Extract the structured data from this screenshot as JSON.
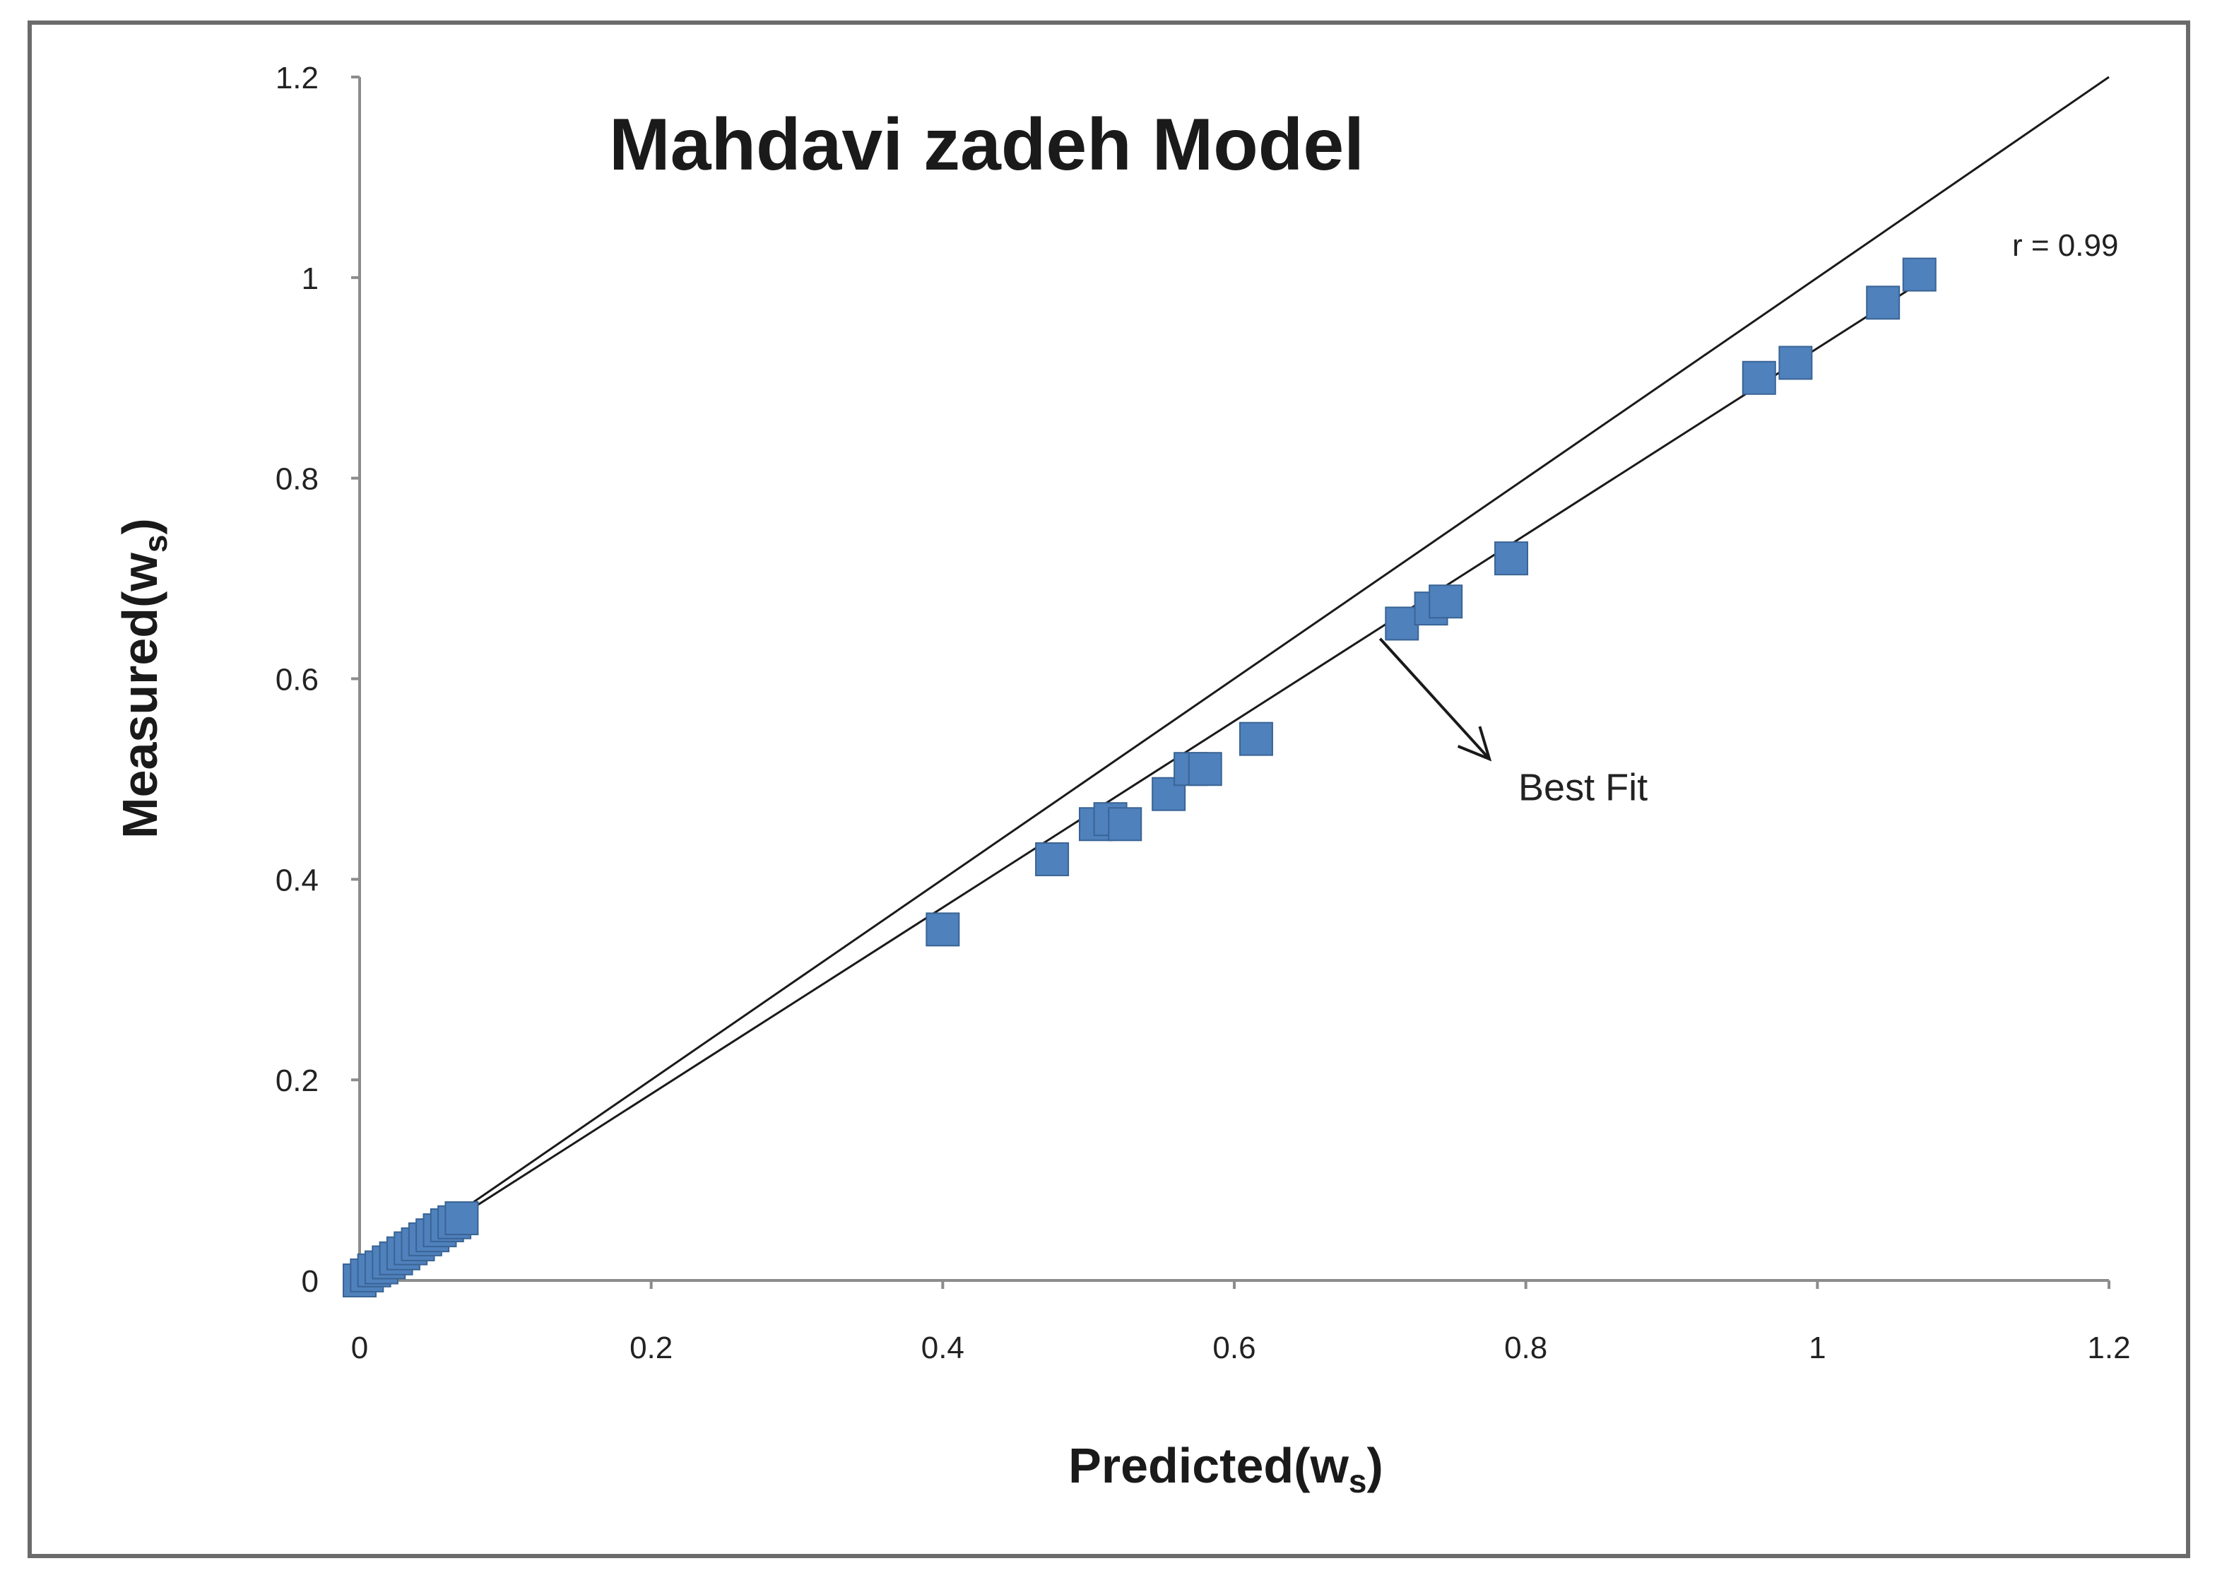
{
  "chart_data": {
    "type": "scatter",
    "title": "Mahdavi zadeh  Model",
    "xlabel": {
      "main": "Predicted(w",
      "sub": "s",
      "close": ")"
    },
    "ylabel": {
      "main": "Measured(w",
      "sub": "s",
      "close": ")"
    },
    "xlim": [
      0,
      1.2
    ],
    "ylim": [
      0,
      1.2
    ],
    "x_ticks": [
      "0",
      "0.2",
      "0.4",
      "0.6",
      "0.8",
      "1",
      "1.2"
    ],
    "y_ticks": [
      "0",
      "0.2",
      "0.4",
      "0.6",
      "0.8",
      "1",
      "1.2"
    ],
    "grid": false,
    "series": [
      {
        "color": "#4f81bd",
        "marker": "square",
        "points": [
          {
            "x": 0.0,
            "y": 0.0
          },
          {
            "x": 0.005,
            "y": 0.005
          },
          {
            "x": 0.01,
            "y": 0.01
          },
          {
            "x": 0.015,
            "y": 0.013
          },
          {
            "x": 0.02,
            "y": 0.018
          },
          {
            "x": 0.025,
            "y": 0.022
          },
          {
            "x": 0.03,
            "y": 0.027
          },
          {
            "x": 0.035,
            "y": 0.032
          },
          {
            "x": 0.04,
            "y": 0.036
          },
          {
            "x": 0.045,
            "y": 0.041
          },
          {
            "x": 0.05,
            "y": 0.045
          },
          {
            "x": 0.055,
            "y": 0.05
          },
          {
            "x": 0.06,
            "y": 0.055
          },
          {
            "x": 0.065,
            "y": 0.058
          },
          {
            "x": 0.07,
            "y": 0.062
          },
          {
            "x": 0.4,
            "y": 0.35
          },
          {
            "x": 0.475,
            "y": 0.42
          },
          {
            "x": 0.505,
            "y": 0.455
          },
          {
            "x": 0.515,
            "y": 0.46
          },
          {
            "x": 0.525,
            "y": 0.455
          },
          {
            "x": 0.555,
            "y": 0.485
          },
          {
            "x": 0.57,
            "y": 0.51
          },
          {
            "x": 0.58,
            "y": 0.51
          },
          {
            "x": 0.615,
            "y": 0.54
          },
          {
            "x": 0.715,
            "y": 0.655
          },
          {
            "x": 0.735,
            "y": 0.67
          },
          {
            "x": 0.745,
            "y": 0.677
          },
          {
            "x": 0.79,
            "y": 0.72
          },
          {
            "x": 0.96,
            "y": 0.9
          },
          {
            "x": 0.985,
            "y": 0.915
          },
          {
            "x": 1.045,
            "y": 0.975
          },
          {
            "x": 1.07,
            "y": 1.003
          }
        ]
      }
    ],
    "lines": [
      {
        "kind": "1:1 line",
        "from": [
          0,
          0
        ],
        "to": [
          1.2,
          1.2
        ]
      },
      {
        "kind": "best fit",
        "from": [
          0,
          0
        ],
        "to": [
          1.065,
          0.99
        ]
      }
    ],
    "annotations": {
      "r": "r = 0.99",
      "best_fit": "Best Fit",
      "best_fit_arrow_from": [
        0.7,
        0.64
      ],
      "best_fit_arrow_to": [
        0.775,
        0.52
      ],
      "best_fit_label_at": [
        0.79,
        0.5
      ]
    }
  }
}
